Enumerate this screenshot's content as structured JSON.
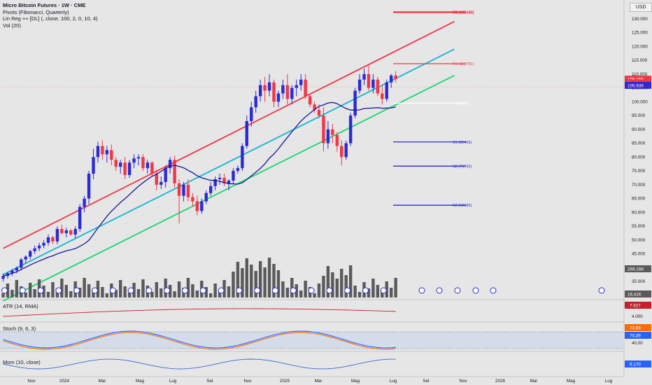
{
  "header": {
    "title": "Micro Bitcoin Futures · 1W · CME",
    "indicators": [
      "Pivots (Fibonacci, Quarterly)",
      "Lin Reg ++ [DL] (, close, 100, 2, 0, 10, 4)",
      "Vol (20)"
    ]
  },
  "currency_button": "USD",
  "panes": {
    "atr": "ATR (14, RMA)",
    "stoch": "Stoch (9, 6, 3)",
    "mom": "Mom (10, close)"
  },
  "chart_data": {
    "type": "candlestick",
    "title": "Micro Bitcoin Futures · 1W · CME",
    "x_tick_labels": [
      "Nov",
      "2024",
      "Mar",
      "Mag",
      "Lug",
      "Set",
      "Nov",
      "2025",
      "Mar",
      "Mag",
      "Lug",
      "Set",
      "Nov",
      "2026",
      "Mar",
      "Mag",
      "Lug"
    ],
    "y_tick_labels": [
      "135.000",
      "130.000",
      "125.000",
      "120.000",
      "115.000",
      "110.000",
      "105.000",
      "100.000",
      "95.000",
      "90.000",
      "85.000",
      "80.000",
      "75.000",
      "70.000",
      "65.000",
      "60.000",
      "55.000",
      "50.000",
      "45.000",
      "40.000",
      "35.000",
      "30.000"
    ],
    "ylim": [
      30000,
      135000
    ],
    "candles_ohlc": [
      [
        36000,
        38000,
        35000,
        37000
      ],
      [
        37000,
        38500,
        36000,
        38000
      ],
      [
        38000,
        39500,
        37000,
        39000
      ],
      [
        39000,
        40500,
        38000,
        40000
      ],
      [
        40000,
        43500,
        39000,
        43000
      ],
      [
        43000,
        44500,
        41500,
        44000
      ],
      [
        44000,
        46500,
        43000,
        46000
      ],
      [
        46000,
        48000,
        45000,
        47000
      ],
      [
        47000,
        49000,
        46000,
        48000
      ],
      [
        48000,
        50000,
        47000,
        49000
      ],
      [
        49000,
        52000,
        48000,
        51000
      ],
      [
        51000,
        51500,
        48500,
        49500
      ],
      [
        49500,
        55000,
        48500,
        54000
      ],
      [
        54000,
        55500,
        52000,
        52500
      ],
      [
        52500,
        54500,
        51000,
        53500
      ],
      [
        53500,
        54000,
        51500,
        52000
      ],
      [
        52000,
        55000,
        50500,
        54000
      ],
      [
        54000,
        63000,
        53000,
        62000
      ],
      [
        62000,
        66000,
        60000,
        65000
      ],
      [
        65000,
        75000,
        63000,
        74000
      ],
      [
        74000,
        83000,
        72000,
        80000
      ],
      [
        80000,
        85500,
        78000,
        84000
      ],
      [
        84000,
        86000,
        79000,
        81000
      ],
      [
        81000,
        84000,
        78000,
        82500
      ],
      [
        82500,
        84500,
        77000,
        79000
      ],
      [
        79000,
        80000,
        75000,
        76500
      ],
      [
        76500,
        79000,
        74000,
        78000
      ],
      [
        78000,
        80000,
        72000,
        73500
      ],
      [
        73500,
        79000,
        72500,
        78000
      ],
      [
        78000,
        81000,
        76000,
        79500
      ],
      [
        79500,
        81000,
        77000,
        80000
      ],
      [
        80000,
        81000,
        75000,
        76000
      ],
      [
        76000,
        79000,
        74000,
        78000
      ],
      [
        78000,
        78500,
        73000,
        74000
      ],
      [
        74000,
        75500,
        68000,
        70000
      ],
      [
        70000,
        73000,
        68500,
        71000
      ],
      [
        71000,
        77000,
        69000,
        76000
      ],
      [
        76000,
        80000,
        74000,
        79000
      ],
      [
        79000,
        80500,
        69000,
        70500
      ],
      [
        70500,
        72000,
        56000,
        66000
      ],
      [
        66000,
        71000,
        64000,
        70000
      ],
      [
        70000,
        72000,
        64000,
        65500
      ],
      [
        65500,
        67000,
        62000,
        64000
      ],
      [
        64000,
        66000,
        59000,
        60500
      ],
      [
        60500,
        65000,
        59500,
        64000
      ],
      [
        64000,
        68000,
        63000,
        67000
      ],
      [
        67000,
        71000,
        66000,
        69500
      ],
      [
        69500,
        73000,
        68000,
        72000
      ],
      [
        72000,
        74000,
        70000,
        72500
      ],
      [
        72500,
        74000,
        69500,
        70500
      ],
      [
        70500,
        72000,
        68000,
        71500
      ],
      [
        71500,
        76000,
        70500,
        75000
      ],
      [
        75000,
        77000,
        74000,
        76000
      ],
      [
        76000,
        85000,
        75000,
        84000
      ],
      [
        84000,
        95000,
        83000,
        93000
      ],
      [
        93000,
        100000,
        91000,
        98000
      ],
      [
        98000,
        104000,
        96000,
        102000
      ],
      [
        102000,
        108000,
        100000,
        106000
      ],
      [
        106000,
        109000,
        100000,
        104000
      ],
      [
        104000,
        110000,
        102000,
        107000
      ],
      [
        107000,
        108000,
        98000,
        100000
      ],
      [
        100000,
        104000,
        98000,
        103000
      ],
      [
        103000,
        108000,
        101000,
        106000
      ],
      [
        106000,
        110000,
        99000,
        101000
      ],
      [
        101000,
        106000,
        99000,
        105000
      ],
      [
        105000,
        108000,
        102000,
        106000
      ],
      [
        106000,
        110000,
        104000,
        108000
      ],
      [
        108000,
        110000,
        101000,
        102000
      ],
      [
        102000,
        103000,
        98000,
        99000
      ],
      [
        99000,
        100000,
        96000,
        97000
      ],
      [
        97000,
        99000,
        94000,
        95000
      ],
      [
        95000,
        98000,
        82000,
        85000
      ],
      [
        85000,
        93000,
        83000,
        90000
      ],
      [
        90000,
        92000,
        85000,
        88000
      ],
      [
        88000,
        89000,
        82000,
        84000
      ],
      [
        84000,
        86000,
        77000,
        80000
      ],
      [
        80000,
        86000,
        79000,
        85000
      ],
      [
        85000,
        96000,
        84000,
        95000
      ],
      [
        95000,
        105000,
        94000,
        104000
      ],
      [
        104000,
        110000,
        103000,
        108000
      ],
      [
        108000,
        112000,
        106000,
        110000
      ],
      [
        110000,
        113000,
        104000,
        105000
      ],
      [
        105000,
        110000,
        103000,
        108000
      ],
      [
        108000,
        109000,
        102000,
        103000
      ],
      [
        103000,
        106000,
        99000,
        101000
      ],
      [
        101000,
        108000,
        100000,
        107000
      ],
      [
        107000,
        110000,
        105000,
        109500
      ],
      [
        109500,
        111000,
        107000,
        108155
      ]
    ],
    "linear_regression": {
      "upper": [
        [
          0,
          47000
        ],
        [
          100,
          129000
        ]
      ],
      "middle": [
        [
          0,
          37500
        ],
        [
          100,
          119000
        ]
      ],
      "lower": [
        [
          0,
          28000
        ],
        [
          100,
          109500
        ]
      ]
    },
    "pivots": [
      {
        "name": "R3 (151655)",
        "value": 151655
      },
      {
        "name": "R2 (132490)",
        "value": 132490
      },
      {
        "name": "R1 (113755)",
        "value": 113755
      },
      {
        "name": "P (99490)",
        "value": 99490
      },
      {
        "name": "S1 (85465)",
        "value": 85465
      },
      {
        "name": "S2 (76730)",
        "value": 76730
      },
      {
        "name": "S3 (62585)",
        "value": 62585
      }
    ],
    "price_labels": [
      {
        "label": "108.155",
        "value": 108155,
        "color": "#f23645"
      },
      {
        "label": "6d 4h",
        "value": 106800,
        "color": "#f23645"
      },
      {
        "label": "105.939",
        "value": 105939,
        "color": "#2a2ad6"
      }
    ],
    "volume": {
      "label": "Vol (20)",
      "value_labels": [
        "269,16K",
        "16,41K"
      ]
    },
    "indicators": {
      "atr": {
        "label": "ATR (14, RMA)",
        "value": "7.927",
        "axis": [
          "4.000"
        ]
      },
      "stoch": {
        "label": "Stoch (9, 6, 3)",
        "values": [
          "73,89",
          "70,39"
        ],
        "axis": [
          "40,00"
        ]
      },
      "mom": {
        "label": "Mom (10, close)",
        "value": "9.170"
      }
    },
    "colors": {
      "up": "#2a2ad6",
      "down": "#f23645",
      "upper_band": "#f23645",
      "middle_band": "#12b5d6",
      "lower_band": "#19d66e",
      "ma": "#16169a",
      "background": "#e6e6e6"
    }
  }
}
